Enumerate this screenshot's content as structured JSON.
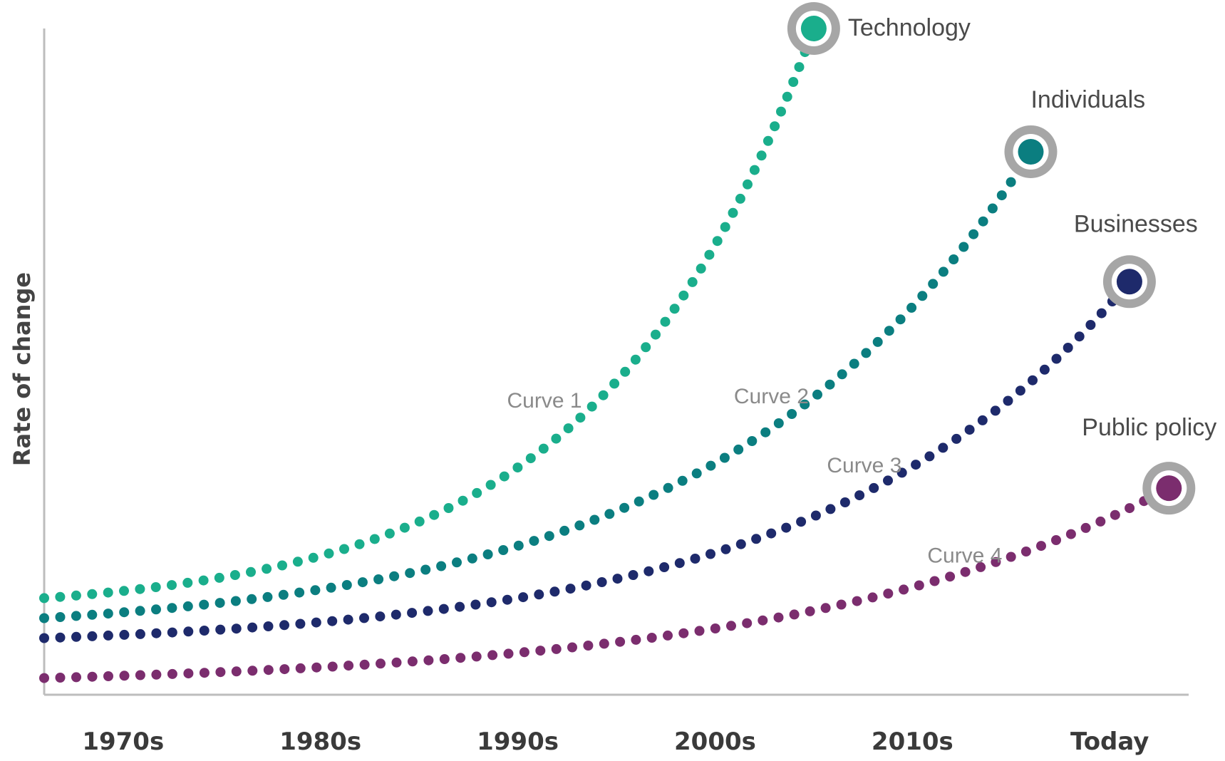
{
  "chart_data": {
    "type": "line",
    "title": "",
    "xlabel": "",
    "ylabel": "Rate of change",
    "categories": [
      "1970s",
      "1980s",
      "1990s",
      "2000s",
      "2010s",
      "Today"
    ],
    "x_range": [
      1966,
      2024
    ],
    "ylim": [
      0,
      100
    ],
    "grid": false,
    "legend": "none (series labelled at curve ends)",
    "series": [
      {
        "name": "Technology",
        "curve_label": "Curve 1",
        "color": "#1aae8c",
        "start": {
          "x": 1966,
          "y": 14.5
        },
        "end": {
          "x": 2005,
          "y": 100
        },
        "growth": 3.6
      },
      {
        "name": "Individuals",
        "curve_label": "Curve 2",
        "color": "#0b7e80",
        "start": {
          "x": 1966,
          "y": 11.5
        },
        "end": {
          "x": 2016,
          "y": 81.5
        },
        "growth": 3.2
      },
      {
        "name": "Businesses",
        "curve_label": "Curve 3",
        "color": "#1e2a6b",
        "start": {
          "x": 1966,
          "y": 8.5
        },
        "end": {
          "x": 2021,
          "y": 62
        },
        "growth": 3.5
      },
      {
        "name": "Public policy",
        "curve_label": "Curve 4",
        "color": "#7b2d6e",
        "start": {
          "x": 1966,
          "y": 2.5
        },
        "end": {
          "x": 2023,
          "y": 31
        },
        "growth": 3.0
      }
    ],
    "marker_ring_color": "#a6a6a6"
  }
}
